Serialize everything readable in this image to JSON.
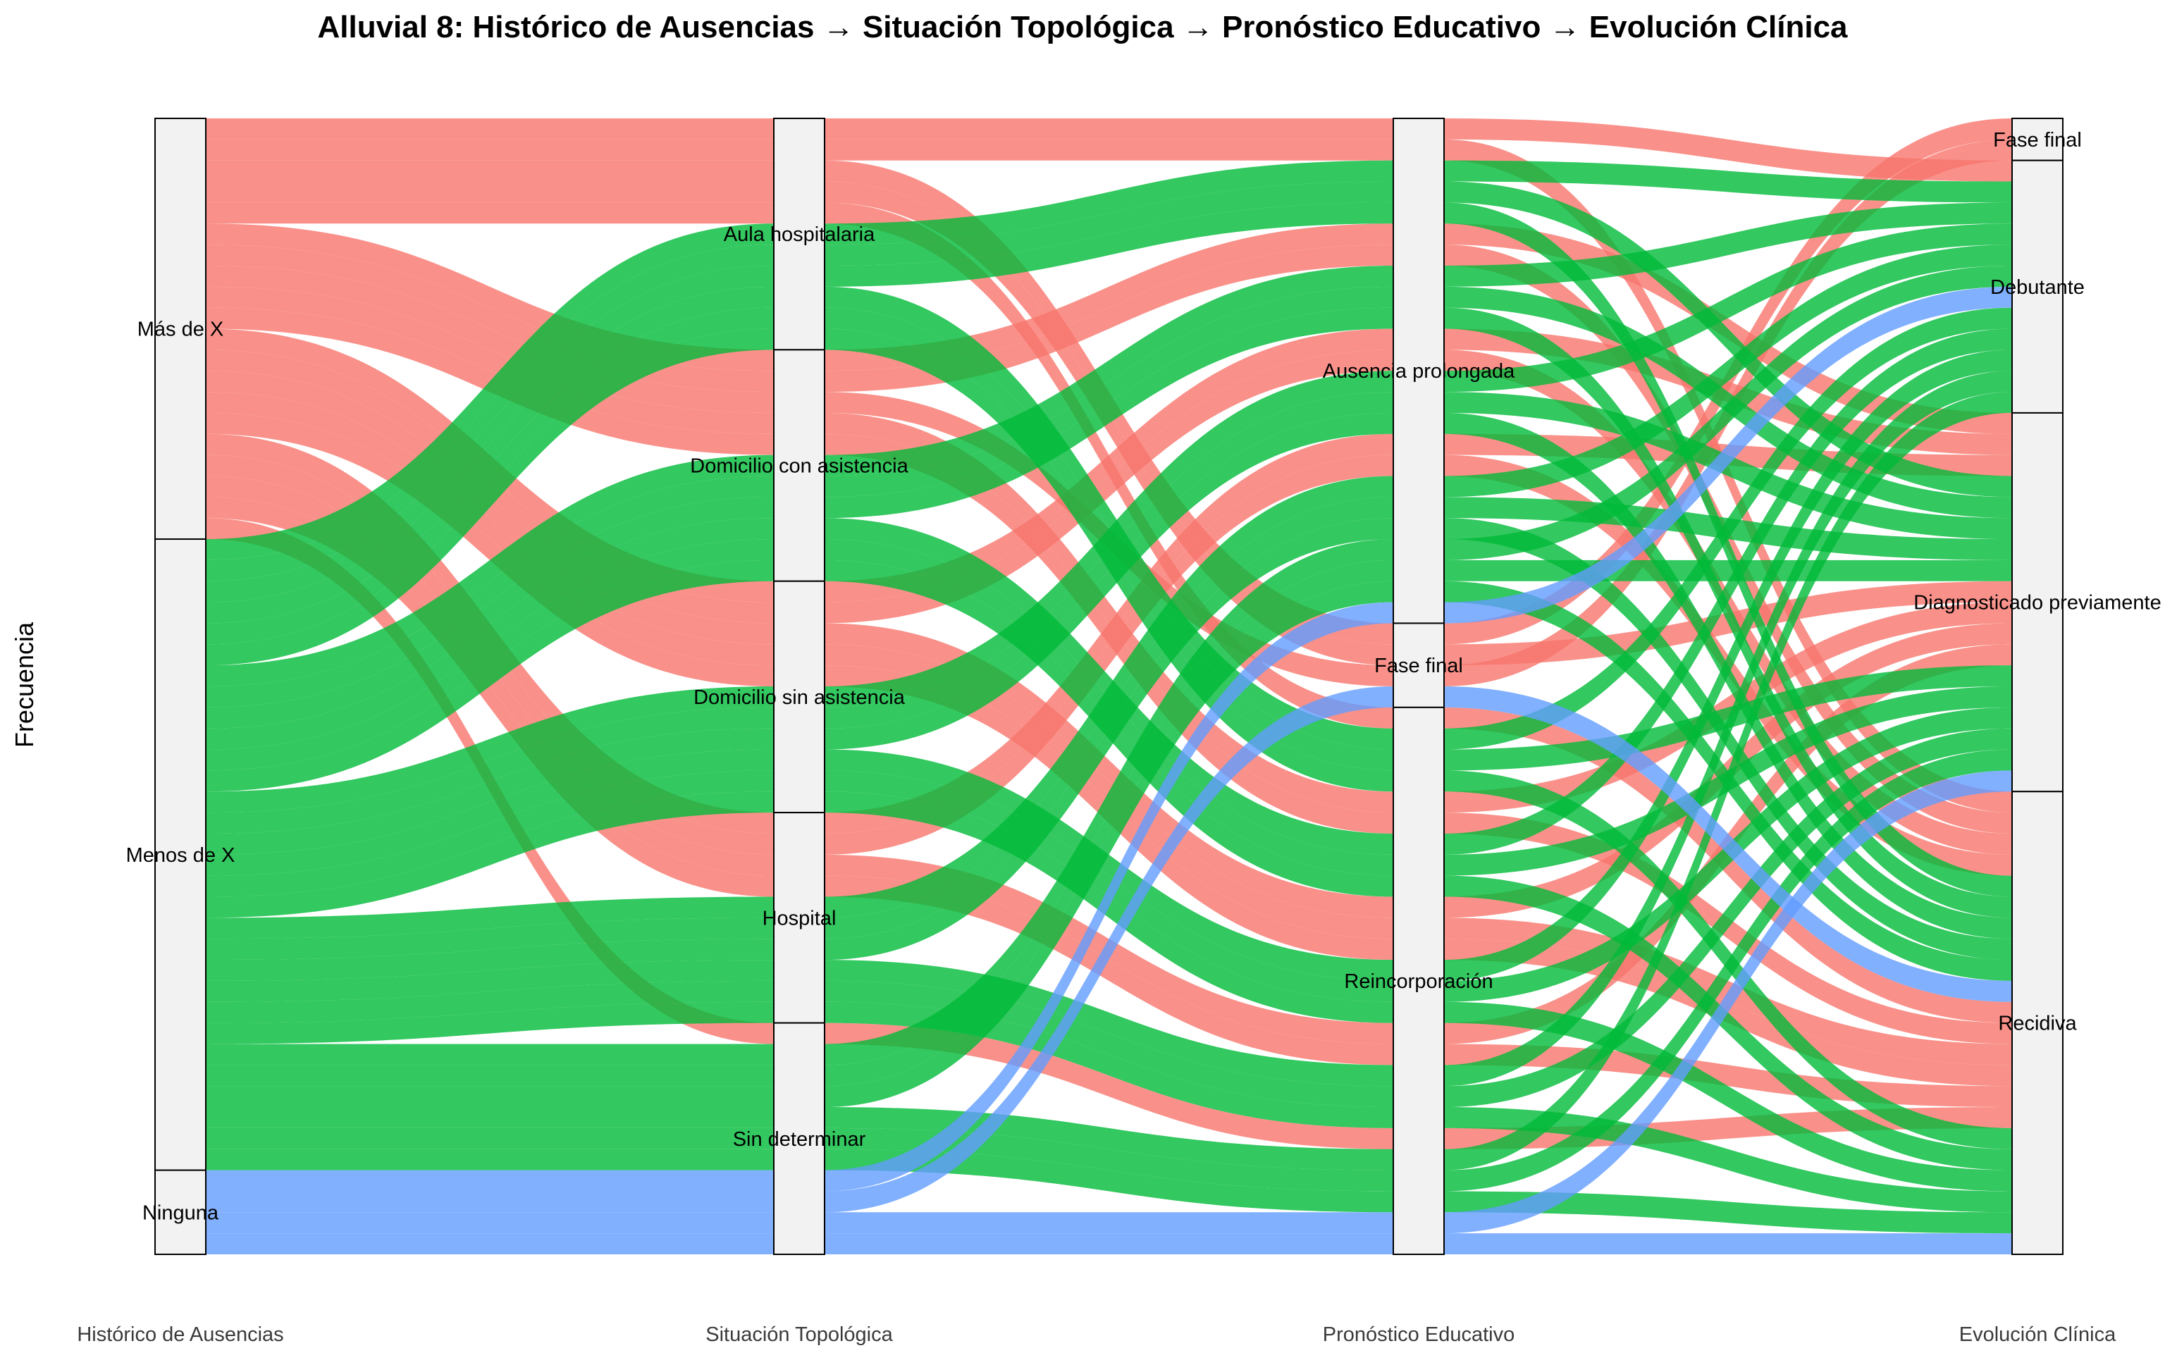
{
  "chart_data": {
    "type": "alluvial",
    "title": "Alluvial 8: Histórico de Ausencias → Situación Topológica → Pronóstico Educativo → Evolución Clínica",
    "ylabel": "Frecuencia",
    "axes": [
      {
        "name": "Histórico de Ausencias",
        "strata": [
          "Más de X",
          "Menos de X",
          "Ninguna"
        ]
      },
      {
        "name": "Situación Topológica",
        "strata": [
          "Aula hospitalaria",
          "Domicilio con asistencia",
          "Domicilio sin asistencia",
          "Hospital",
          "Sin determinar"
        ]
      },
      {
        "name": "Pronóstico Educativo",
        "strata": [
          "Ausencia prolongada",
          "Fase final",
          "Reincorporación"
        ]
      },
      {
        "name": "Evolución Clínica",
        "strata": [
          "Fase final",
          "Debutante",
          "Diagnosticado previamente",
          "Recidiva"
        ]
      }
    ],
    "fill_legend": {
      "Más de X": "#F8766D",
      "Menos de X": "#00BA38",
      "Ninguna": "#619CFF"
    },
    "total": 54,
    "flows": [
      {
        "hist": "Más de X",
        "situ": "Aula hospitalaria",
        "prono": "Ausencia prolongada",
        "evol": "Debutante",
        "freq": 1
      },
      {
        "hist": "Más de X",
        "situ": "Aula hospitalaria",
        "prono": "Ausencia prolongada",
        "evol": "Recidiva",
        "freq": 1
      },
      {
        "hist": "Más de X",
        "situ": "Aula hospitalaria",
        "prono": "Fase final",
        "evol": "Fase final",
        "freq": 1
      },
      {
        "hist": "Más de X",
        "situ": "Aula hospitalaria",
        "prono": "Fase final",
        "evol": "Diagnosticado previamente",
        "freq": 1
      },
      {
        "hist": "Más de X",
        "situ": "Aula hospitalaria",
        "prono": "Reincorporación",
        "evol": "Recidiva",
        "freq": 1
      },
      {
        "hist": "Más de X",
        "situ": "Domicilio con asistencia",
        "prono": "Ausencia prolongada",
        "evol": "Diagnosticado previamente",
        "freq": 1
      },
      {
        "hist": "Más de X",
        "situ": "Domicilio con asistencia",
        "prono": "Ausencia prolongada",
        "evol": "Recidiva",
        "freq": 1
      },
      {
        "hist": "Más de X",
        "situ": "Domicilio con asistencia",
        "prono": "Fase final",
        "evol": "Fase final",
        "freq": 1
      },
      {
        "hist": "Más de X",
        "situ": "Domicilio con asistencia",
        "prono": "Reincorporación",
        "evol": "Diagnosticado previamente",
        "freq": 1
      },
      {
        "hist": "Más de X",
        "situ": "Domicilio con asistencia",
        "prono": "Reincorporación",
        "evol": "Recidiva",
        "freq": 1
      },
      {
        "hist": "Más de X",
        "situ": "Domicilio sin asistencia",
        "prono": "Ausencia prolongada",
        "evol": "Diagnosticado previamente",
        "freq": 1
      },
      {
        "hist": "Más de X",
        "situ": "Domicilio sin asistencia",
        "prono": "Ausencia prolongada",
        "evol": "Recidiva",
        "freq": 1
      },
      {
        "hist": "Más de X",
        "situ": "Domicilio sin asistencia",
        "prono": "Reincorporación",
        "evol": "Diagnosticado previamente",
        "freq": 1
      },
      {
        "hist": "Más de X",
        "situ": "Domicilio sin asistencia",
        "prono": "Reincorporación",
        "evol": "Recidiva",
        "freq": 1
      },
      {
        "hist": "Más de X",
        "situ": "Domicilio sin asistencia",
        "prono": "Reincorporación",
        "evol": "Recidiva",
        "freq": 1
      },
      {
        "hist": "Más de X",
        "situ": "Hospital",
        "prono": "Ausencia prolongada",
        "evol": "Diagnosticado previamente",
        "freq": 1
      },
      {
        "hist": "Más de X",
        "situ": "Hospital",
        "prono": "Ausencia prolongada",
        "evol": "Recidiva",
        "freq": 1
      },
      {
        "hist": "Más de X",
        "situ": "Hospital",
        "prono": "Reincorporación",
        "evol": "Diagnosticado previamente",
        "freq": 1
      },
      {
        "hist": "Más de X",
        "situ": "Hospital",
        "prono": "Reincorporación",
        "evol": "Recidiva",
        "freq": 1
      },
      {
        "hist": "Más de X",
        "situ": "Sin determinar",
        "prono": "Reincorporación",
        "evol": "Recidiva",
        "freq": 1
      },
      {
        "hist": "Menos de X",
        "situ": "Aula hospitalaria",
        "prono": "Ausencia prolongada",
        "evol": "Debutante",
        "freq": 1
      },
      {
        "hist": "Menos de X",
        "situ": "Aula hospitalaria",
        "prono": "Ausencia prolongada",
        "evol": "Diagnosticado previamente",
        "freq": 1
      },
      {
        "hist": "Menos de X",
        "situ": "Aula hospitalaria",
        "prono": "Ausencia prolongada",
        "evol": "Recidiva",
        "freq": 1
      },
      {
        "hist": "Menos de X",
        "situ": "Aula hospitalaria",
        "prono": "Reincorporación",
        "evol": "Debutante",
        "freq": 1
      },
      {
        "hist": "Menos de X",
        "situ": "Aula hospitalaria",
        "prono": "Reincorporación",
        "evol": "Diagnosticado previamente",
        "freq": 1
      },
      {
        "hist": "Menos de X",
        "situ": "Aula hospitalaria",
        "prono": "Reincorporación",
        "evol": "Recidiva",
        "freq": 1
      },
      {
        "hist": "Menos de X",
        "situ": "Domicilio con asistencia",
        "prono": "Ausencia prolongada",
        "evol": "Debutante",
        "freq": 1
      },
      {
        "hist": "Menos de X",
        "situ": "Domicilio con asistencia",
        "prono": "Ausencia prolongada",
        "evol": "Diagnosticado previamente",
        "freq": 1
      },
      {
        "hist": "Menos de X",
        "situ": "Domicilio con asistencia",
        "prono": "Ausencia prolongada",
        "evol": "Recidiva",
        "freq": 1
      },
      {
        "hist": "Menos de X",
        "situ": "Domicilio con asistencia",
        "prono": "Reincorporación",
        "evol": "Debutante",
        "freq": 1
      },
      {
        "hist": "Menos de X",
        "situ": "Domicilio con asistencia",
        "prono": "Reincorporación",
        "evol": "Diagnosticado previamente",
        "freq": 1
      },
      {
        "hist": "Menos de X",
        "situ": "Domicilio con asistencia",
        "prono": "Reincorporación",
        "evol": "Recidiva",
        "freq": 1
      },
      {
        "hist": "Menos de X",
        "situ": "Domicilio sin asistencia",
        "prono": "Ausencia prolongada",
        "evol": "Debutante",
        "freq": 1
      },
      {
        "hist": "Menos de X",
        "situ": "Domicilio sin asistencia",
        "prono": "Ausencia prolongada",
        "evol": "Diagnosticado previamente",
        "freq": 1
      },
      {
        "hist": "Menos de X",
        "situ": "Domicilio sin asistencia",
        "prono": "Ausencia prolongada",
        "evol": "Recidiva",
        "freq": 1
      },
      {
        "hist": "Menos de X",
        "situ": "Domicilio sin asistencia",
        "prono": "Reincorporación",
        "evol": "Debutante",
        "freq": 1
      },
      {
        "hist": "Menos de X",
        "situ": "Domicilio sin asistencia",
        "prono": "Reincorporación",
        "evol": "Diagnosticado previamente",
        "freq": 1
      },
      {
        "hist": "Menos de X",
        "situ": "Domicilio sin asistencia",
        "prono": "Reincorporación",
        "evol": "Recidiva",
        "freq": 1
      },
      {
        "hist": "Menos de X",
        "situ": "Hospital",
        "prono": "Ausencia prolongada",
        "evol": "Debutante",
        "freq": 1
      },
      {
        "hist": "Menos de X",
        "situ": "Hospital",
        "prono": "Ausencia prolongada",
        "evol": "Diagnosticado previamente",
        "freq": 1
      },
      {
        "hist": "Menos de X",
        "situ": "Hospital",
        "prono": "Ausencia prolongada",
        "evol": "Recidiva",
        "freq": 1
      },
      {
        "hist": "Menos de X",
        "situ": "Hospital",
        "prono": "Reincorporación",
        "evol": "Debutante",
        "freq": 1
      },
      {
        "hist": "Menos de X",
        "situ": "Hospital",
        "prono": "Reincorporación",
        "evol": "Diagnosticado previamente",
        "freq": 1
      },
      {
        "hist": "Menos de X",
        "situ": "Hospital",
        "prono": "Reincorporación",
        "evol": "Recidiva",
        "freq": 1
      },
      {
        "hist": "Menos de X",
        "situ": "Sin determinar",
        "prono": "Ausencia prolongada",
        "evol": "Debutante",
        "freq": 1
      },
      {
        "hist": "Menos de X",
        "situ": "Sin determinar",
        "prono": "Ausencia prolongada",
        "evol": "Diagnosticado previamente",
        "freq": 1
      },
      {
        "hist": "Menos de X",
        "situ": "Sin determinar",
        "prono": "Ausencia prolongada",
        "evol": "Recidiva",
        "freq": 1
      },
      {
        "hist": "Menos de X",
        "situ": "Sin determinar",
        "prono": "Reincorporación",
        "evol": "Debutante",
        "freq": 1
      },
      {
        "hist": "Menos de X",
        "situ": "Sin determinar",
        "prono": "Reincorporación",
        "evol": "Diagnosticado previamente",
        "freq": 1
      },
      {
        "hist": "Menos de X",
        "situ": "Sin determinar",
        "prono": "Reincorporación",
        "evol": "Recidiva",
        "freq": 1
      },
      {
        "hist": "Ninguna",
        "situ": "Sin determinar",
        "prono": "Ausencia prolongada",
        "evol": "Debutante",
        "freq": 1
      },
      {
        "hist": "Ninguna",
        "situ": "Sin determinar",
        "prono": "Fase final",
        "evol": "Recidiva",
        "freq": 1
      },
      {
        "hist": "Ninguna",
        "situ": "Sin determinar",
        "prono": "Reincorporación",
        "evol": "Diagnosticado previamente",
        "freq": 1
      },
      {
        "hist": "Ninguna",
        "situ": "Sin determinar",
        "prono": "Reincorporación",
        "evol": "Recidiva",
        "freq": 1
      }
    ]
  }
}
